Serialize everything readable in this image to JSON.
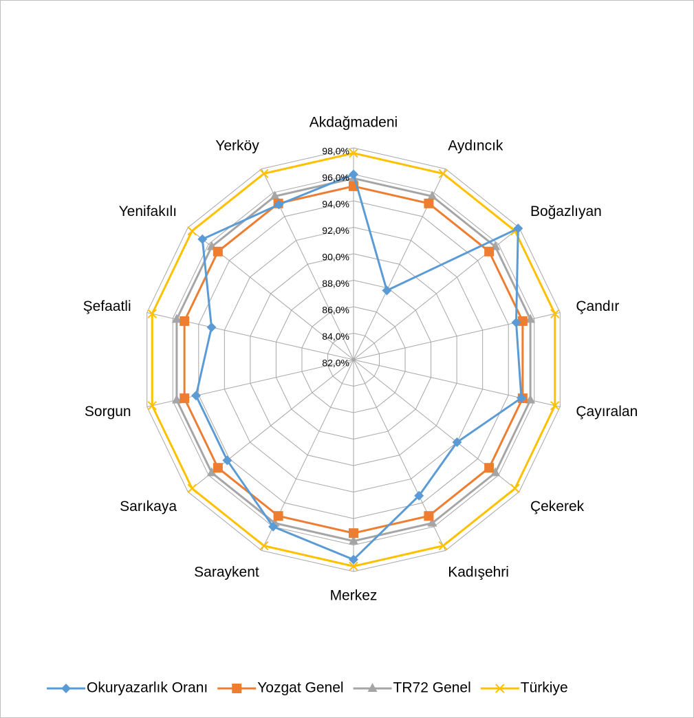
{
  "chart_data": {
    "type": "radar",
    "categories": [
      "Akdağmadeni",
      "Aydıncık",
      "Boğazlıyan",
      "Çandır",
      "Çayıralan",
      "Çekerek",
      "Kadışehri",
      "Merkez",
      "Saraykent",
      "Sarıkaya",
      "Sorgun",
      "Şefaatli",
      "Yenifakılı",
      "Yerköy"
    ],
    "series": [
      {
        "name": "Okuryazarlık Oranı",
        "color": "#5b9bd5",
        "marker": "diamond",
        "values": [
          96.0,
          87.8,
          97.9,
          94.6,
          95.0,
          92.0,
          93.4,
          97.1,
          96.0,
          94.2,
          94.2,
          93.0,
          96.6,
          95.0
        ]
      },
      {
        "name": "Yozgat Genel",
        "color": "#ed7d31",
        "marker": "square",
        "values": [
          95.1,
          95.1,
          95.1,
          95.1,
          95.1,
          95.1,
          95.1,
          95.1,
          95.1,
          95.1,
          95.1,
          95.1,
          95.1,
          95.1
        ]
      },
      {
        "name": "TR72 Genel",
        "color": "#a5a5a5",
        "marker": "triangle",
        "values": [
          95.7,
          95.7,
          95.7,
          95.7,
          95.7,
          95.7,
          95.7,
          95.7,
          95.7,
          95.7,
          95.7,
          95.7,
          95.7,
          95.7
        ]
      },
      {
        "name": "Türkiye",
        "color": "#ffc000",
        "marker": "x",
        "values": [
          97.6,
          97.6,
          97.6,
          97.6,
          97.6,
          97.6,
          97.6,
          97.6,
          97.6,
          97.6,
          97.6,
          97.6,
          97.6,
          97.6
        ]
      }
    ],
    "ylim": [
      82,
      98
    ],
    "yticks": [
      {
        "value": 82,
        "label": "82,0%"
      },
      {
        "value": 84,
        "label": "84,0%"
      },
      {
        "value": 86,
        "label": "86,0%"
      },
      {
        "value": 88,
        "label": "88,0%"
      },
      {
        "value": 90,
        "label": "90,0%"
      },
      {
        "value": 92,
        "label": "92,0%"
      },
      {
        "value": 94,
        "label": "94,0%"
      },
      {
        "value": 96,
        "label": "96,0%"
      },
      {
        "value": 98,
        "label": "98,0%"
      }
    ],
    "grid": true,
    "legend": "bottom"
  }
}
